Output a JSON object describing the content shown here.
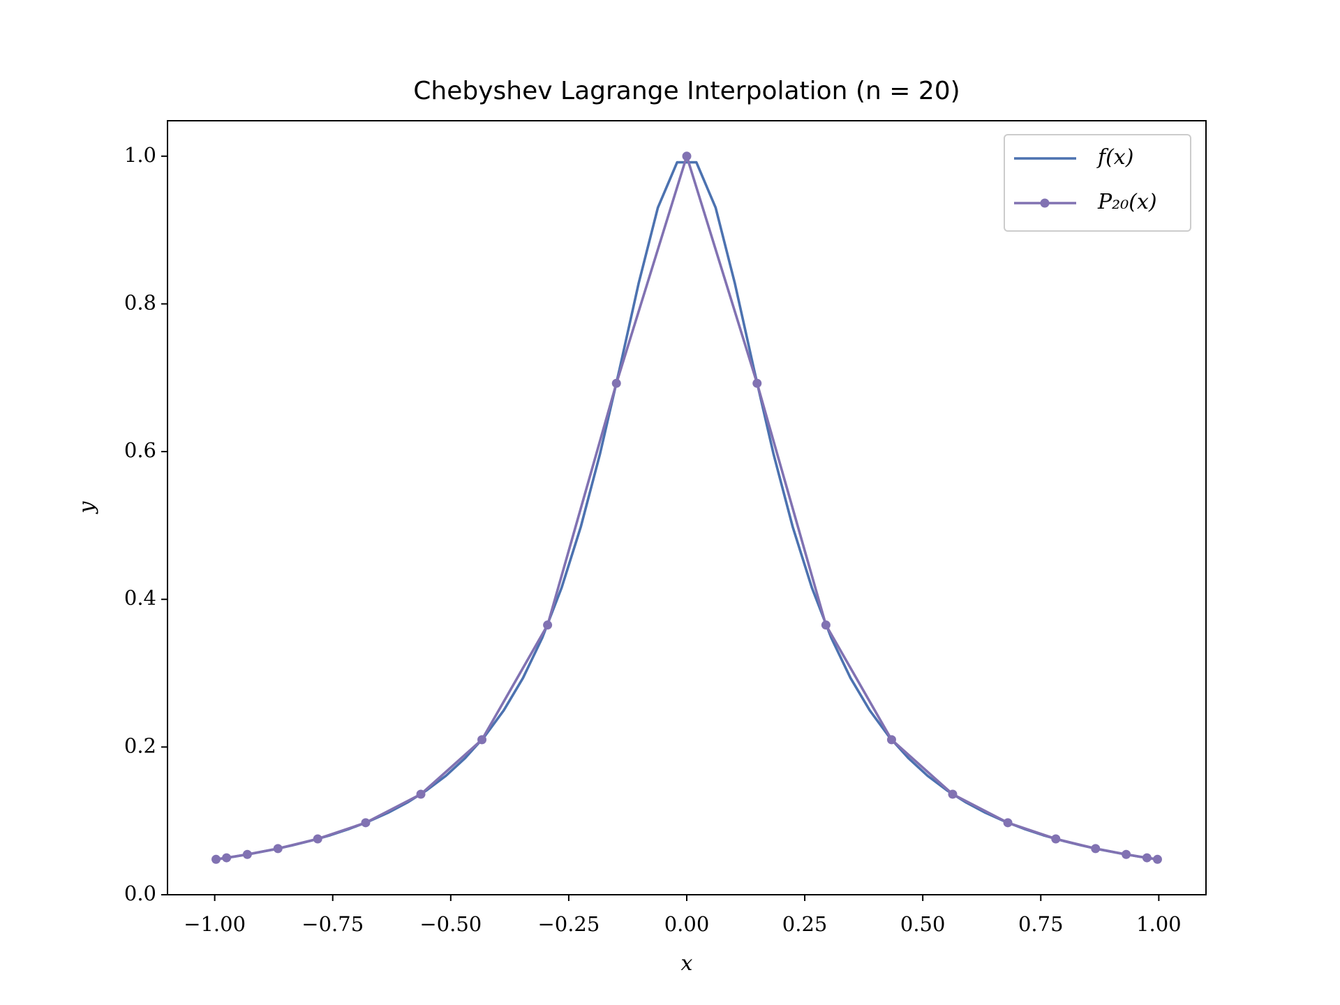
{
  "chart_data": {
    "type": "line",
    "title": "Chebyshev Lagrange Interpolation (n = 20)",
    "xlabel": "x",
    "ylabel": "y",
    "xlim": [
      -1.1,
      1.1
    ],
    "ylim": [
      0,
      1.048
    ],
    "xticks": [
      {
        "value": -1,
        "label": "−1.00"
      },
      {
        "value": -0.75,
        "label": "−0.75"
      },
      {
        "value": -0.5,
        "label": "−0.50"
      },
      {
        "value": -0.25,
        "label": "−0.25"
      },
      {
        "value": 0,
        "label": "0.00"
      },
      {
        "value": 0.25,
        "label": "0.25"
      },
      {
        "value": 0.5,
        "label": "0.50"
      },
      {
        "value": 0.75,
        "label": "0.75"
      },
      {
        "value": 1,
        "label": "1.00"
      }
    ],
    "yticks": [
      {
        "value": 0,
        "label": "0.0"
      },
      0.2,
      0.4,
      0.6,
      0.8,
      {
        "value": 1,
        "label": "1.0"
      }
    ],
    "legend": "upper right",
    "series": [
      {
        "name": "f(x)",
        "color": "#4c72b0",
        "markers": false,
        "x": [
          -1.0,
          -0.9592,
          -0.9184,
          -0.8776,
          -0.8367,
          -0.7959,
          -0.7551,
          -0.7143,
          -0.6735,
          -0.6327,
          -0.5918,
          -0.551,
          -0.5102,
          -0.4694,
          -0.4286,
          -0.3878,
          -0.3469,
          -0.3061,
          -0.2653,
          -0.2245,
          -0.1837,
          -0.1429,
          -0.102,
          -0.0612,
          -0.0204,
          0.0204,
          0.0612,
          0.102,
          0.1429,
          0.1837,
          0.2245,
          0.2653,
          0.3061,
          0.3469,
          0.3878,
          0.4286,
          0.4694,
          0.5102,
          0.551,
          0.5918,
          0.6327,
          0.6735,
          0.7143,
          0.7551,
          0.7959,
          0.8367,
          0.8776,
          0.9184,
          0.9592,
          1.0
        ],
        "values": [
          0.0476,
          0.0515,
          0.056,
          0.061,
          0.0667,
          0.0732,
          0.0806,
          0.0893,
          0.0993,
          0.111,
          0.1249,
          0.1414,
          0.1611,
          0.185,
          0.214,
          0.2495,
          0.2935,
          0.3479,
          0.4153,
          0.498,
          0.5971,
          0.7101,
          0.8276,
          0.9303,
          0.9917,
          0.9917,
          0.9303,
          0.8276,
          0.7101,
          0.5971,
          0.498,
          0.4153,
          0.3479,
          0.2935,
          0.2495,
          0.214,
          0.185,
          0.1611,
          0.1414,
          0.1249,
          0.111,
          0.0993,
          0.0893,
          0.0806,
          0.0732,
          0.0667,
          0.061,
          0.056,
          0.0515,
          0.0476
        ]
      },
      {
        "name": "P₂₀(x)",
        "color": "#8172b2",
        "markers": true,
        "x": [
          -0.9972,
          -0.9749,
          -0.9309,
          -0.866,
          -0.7818,
          -0.6802,
          -0.5633,
          -0.4339,
          -0.2948,
          -0.149,
          0,
          0.149,
          0.2948,
          0.4339,
          0.5633,
          0.6802,
          0.7818,
          0.866,
          0.9309,
          0.9749,
          0.9972
        ],
        "values": [
          0.0479,
          0.05,
          0.0546,
          0.0625,
          0.0756,
          0.0975,
          0.1361,
          0.2099,
          0.3652,
          0.6925,
          1.0,
          0.6925,
          0.3652,
          0.2099,
          0.1361,
          0.0975,
          0.0756,
          0.0625,
          0.0546,
          0.05,
          0.0479
        ]
      }
    ]
  }
}
